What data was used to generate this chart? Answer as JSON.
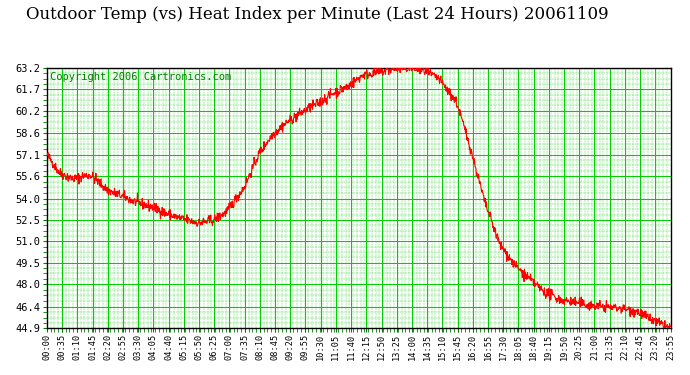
{
  "title": "Outdoor Temp (vs) Heat Index per Minute (Last 24 Hours) 20061109",
  "copyright_text": "Copyright 2006 Cartronics.com",
  "yticks": [
    44.9,
    46.4,
    48.0,
    49.5,
    51.0,
    52.5,
    54.0,
    55.6,
    57.1,
    58.6,
    60.2,
    61.7,
    63.2
  ],
  "ymin": 44.9,
  "ymax": 63.2,
  "line_color": "#ff0000",
  "bg_color": "#ffffff",
  "plot_bg_color": "#ffffff",
  "grid_major_color": "#00cc00",
  "grid_minor_color": "#00cc00",
  "title_fontsize": 12,
  "copyright_fontsize": 7.5,
  "xtick_labels": [
    "00:00",
    "00:35",
    "01:10",
    "01:45",
    "02:20",
    "02:55",
    "03:30",
    "04:05",
    "04:40",
    "05:15",
    "05:50",
    "06:25",
    "07:00",
    "07:35",
    "08:10",
    "08:45",
    "09:20",
    "09:55",
    "10:30",
    "11:05",
    "11:40",
    "12:15",
    "12:50",
    "13:25",
    "14:00",
    "14:35",
    "15:10",
    "15:45",
    "16:20",
    "16:55",
    "17:30",
    "18:05",
    "18:40",
    "19:15",
    "19:50",
    "20:25",
    "21:00",
    "21:35",
    "22:10",
    "22:45",
    "23:20",
    "23:55"
  ],
  "keypoints_t": [
    0,
    30,
    60,
    100,
    140,
    180,
    210,
    245,
    280,
    310,
    350,
    385,
    415,
    455,
    490,
    520,
    555,
    590,
    625,
    660,
    695,
    730,
    765,
    800,
    840,
    870,
    905,
    945,
    975,
    1010,
    1045,
    1080,
    1115,
    1150,
    1185,
    1220,
    1255,
    1290,
    1325,
    1360,
    1400,
    1439
  ],
  "keypoints_v": [
    57.1,
    55.8,
    55.4,
    55.7,
    54.6,
    54.1,
    53.7,
    53.4,
    52.9,
    52.6,
    52.3,
    52.5,
    53.1,
    54.8,
    57.2,
    58.5,
    59.4,
    60.1,
    60.7,
    61.4,
    61.9,
    62.7,
    62.9,
    63.1,
    63.2,
    63.0,
    62.4,
    60.8,
    57.8,
    53.8,
    50.8,
    49.3,
    48.3,
    47.4,
    46.9,
    46.7,
    46.5,
    46.4,
    46.3,
    46.1,
    45.4,
    44.9
  ]
}
